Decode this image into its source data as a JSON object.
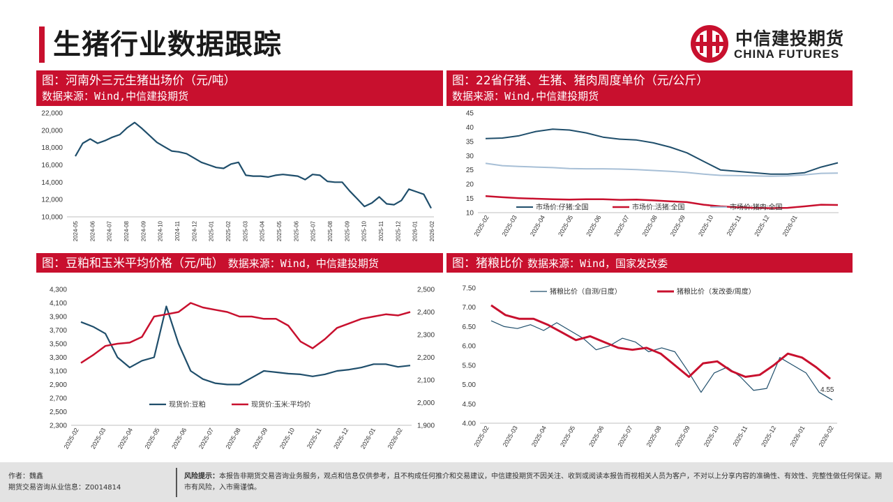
{
  "page_title": "生猪行业数据跟踪",
  "logo": {
    "cn": "中信建投期货",
    "en": "CHINA FUTURES",
    "color": "#c8102e"
  },
  "panels": [
    {
      "title": "图：河南外三元生猪出场价（元/吨）",
      "source": "数据来源：Wind,中信建投期货"
    },
    {
      "title": "图：22省仔猪、生猪、猪肉周度单价（元/公斤）",
      "source": "数据来源：Wind,中信建投期货"
    },
    {
      "title": "图：豆粕和玉米平均价格（元/吨）",
      "source": "数据来源：Wind，中信建投期货"
    },
    {
      "title": "图：猪粮比价",
      "source": "数据来源：Wind，国家发改委"
    }
  ],
  "footer": {
    "author_label": "作者：",
    "author": "魏鑫",
    "license_label": "期货交易咨询从业信息：",
    "license": "Z0014814",
    "risk_label": "风险提示：",
    "risk_text": "本报告非期货交易咨询业务服务，观点和信息仅供参考，且不构成任何推介和交易建议，中信建投期货不因关注、收到或阅读本报告而视相关人员为客户，不对以上分享内容的准确性、有效性、完整性做任何保证。期市有风险，入市需谨慎。"
  },
  "chart_data": [
    {
      "type": "line",
      "ylim": [
        10000,
        22000
      ],
      "yticks": [
        "10,000",
        "12,000",
        "14,000",
        "16,000",
        "18,000",
        "20,000",
        "22,000"
      ],
      "xticks": [
        "2024-05",
        "2024-06",
        "2024-07",
        "2024-08",
        "2024-09",
        "2024-10",
        "2024-11",
        "2024-12",
        "2025-01",
        "2025-02",
        "2025-03",
        "2025-04",
        "2025-05",
        "2025-06",
        "2025-07",
        "2025-08",
        "2025-09",
        "2025-10",
        "2025-11",
        "2025-12",
        "2026-01",
        "2026-02"
      ],
      "color": "#1f4e6b",
      "series": [
        {
          "name": "",
          "values": [
            17000,
            18500,
            19000,
            18500,
            18800,
            19200,
            19500,
            20300,
            20900,
            20200,
            19400,
            18600,
            18100,
            17600,
            17500,
            17300,
            16800,
            16300,
            16000,
            15700,
            15600,
            16100,
            16300,
            14800,
            14700,
            14700,
            14600,
            14800,
            14900,
            14800,
            14700,
            14300,
            14900,
            14800,
            14100,
            14000,
            14000,
            13000,
            12100,
            11200,
            11600,
            12300,
            11500,
            11400,
            11900,
            13200,
            12900,
            12600,
            11000
          ]
        }
      ]
    },
    {
      "type": "line",
      "ylim": [
        10,
        45
      ],
      "yticks": [
        "10",
        "15",
        "20",
        "25",
        "30",
        "35",
        "40",
        "45"
      ],
      "xticks": [
        "2025-02",
        "2025-03",
        "2025-04",
        "2025-05",
        "2025-06",
        "2025-07",
        "2025-08",
        "2025-09",
        "2025-10",
        "2025-11",
        "2025-12",
        "2026-01"
      ],
      "series": [
        {
          "name": "市场价:仔猪:全国",
          "color": "#1f4e6b",
          "values": [
            36,
            36.2,
            37,
            38.5,
            39.3,
            39,
            38,
            36.5,
            35.8,
            35.5,
            34.5,
            33,
            31,
            28,
            25,
            24.5,
            24,
            23.5,
            23.5,
            24,
            26,
            27.5
          ]
        },
        {
          "name": "市场价:活猪:全国",
          "color": "#c8102e",
          "values": [
            15.8,
            15.4,
            15.1,
            14.9,
            14.7,
            14.6,
            14.7,
            14.7,
            14.5,
            14.6,
            14.3,
            14,
            13.7,
            12.8,
            12.2,
            11.9,
            11.7,
            11.6,
            11.7,
            12.2,
            12.8,
            12.7
          ]
        },
        {
          "name": "市场价:猪肉:全国",
          "color": "#a7bfd6",
          "values": [
            27.3,
            26.5,
            26.2,
            26,
            25.8,
            25.5,
            25.4,
            25.4,
            25.3,
            25.1,
            24.8,
            24.5,
            24.1,
            23.5,
            23.1,
            23,
            22.9,
            22.8,
            22.9,
            23.3,
            23.8,
            23.9
          ]
        }
      ]
    },
    {
      "type": "line",
      "ylim_left": [
        2300,
        4300
      ],
      "ylim_right": [
        1900,
        2500
      ],
      "yticks_left": [
        "2,300",
        "2,500",
        "2,700",
        "2,900",
        "3,100",
        "3,300",
        "3,500",
        "3,700",
        "3,900",
        "4,100",
        "4,300"
      ],
      "yticks_right": [
        "1,900",
        "2,000",
        "2,100",
        "2,200",
        "2,300",
        "2,400",
        "2,500"
      ],
      "xticks": [
        "2025-02",
        "2025-03",
        "2025-04",
        "2025-05",
        "2025-06",
        "2025-07",
        "2025-08",
        "2025-09",
        "2025-10",
        "2025-11",
        "2025-12",
        "2026-01",
        "2026-02"
      ],
      "series": [
        {
          "name": "现货价:豆粕",
          "axis": "left",
          "color": "#1f4e6b",
          "values": [
            3820,
            3750,
            3650,
            3300,
            3150,
            3250,
            3300,
            4050,
            3500,
            3100,
            2980,
            2920,
            2900,
            2900,
            3000,
            3100,
            3080,
            3060,
            3050,
            3020,
            3050,
            3100,
            3120,
            3150,
            3200,
            3200,
            3160,
            3180
          ]
        },
        {
          "name": "现货价:玉米:平均价",
          "axis": "right",
          "color": "#c8102e",
          "values": [
            2175,
            2210,
            2250,
            2260,
            2265,
            2290,
            2380,
            2390,
            2400,
            2440,
            2420,
            2410,
            2400,
            2380,
            2380,
            2370,
            2370,
            2340,
            2270,
            2240,
            2280,
            2330,
            2350,
            2370,
            2380,
            2390,
            2385,
            2400
          ]
        }
      ]
    },
    {
      "type": "line",
      "ylim": [
        4.0,
        7.5
      ],
      "yticks": [
        "4.00",
        "4.50",
        "5.00",
        "5.50",
        "6.00",
        "6.50",
        "7.00",
        "7.50"
      ],
      "xticks": [
        "2025-02",
        "2025-03",
        "2025-04",
        "2025-05",
        "2025-06",
        "2025-07",
        "2025-08",
        "2025-09",
        "2025-10",
        "2025-11",
        "2025-12",
        "2026-01",
        "2026-02"
      ],
      "annotation": "4.55",
      "series": [
        {
          "name": "猪粮比价（自测/日度）",
          "color": "#1f4e6b",
          "values": [
            6.65,
            6.5,
            6.45,
            6.55,
            6.4,
            6.6,
            6.4,
            6.2,
            5.9,
            6.0,
            6.2,
            6.1,
            5.85,
            5.95,
            5.85,
            5.35,
            4.8,
            5.3,
            5.45,
            5.2,
            4.85,
            4.9,
            5.7,
            5.5,
            5.3,
            4.8,
            4.6
          ]
        },
        {
          "name": "猪粮比价（发改委/周度）",
          "color": "#c8102e",
          "values": [
            7.05,
            6.8,
            6.7,
            6.7,
            6.55,
            6.35,
            6.15,
            6.25,
            6.1,
            5.95,
            5.9,
            5.95,
            5.8,
            5.5,
            5.2,
            5.55,
            5.6,
            5.35,
            5.2,
            5.25,
            5.5,
            5.8,
            5.7,
            5.45,
            5.15
          ]
        }
      ]
    }
  ]
}
